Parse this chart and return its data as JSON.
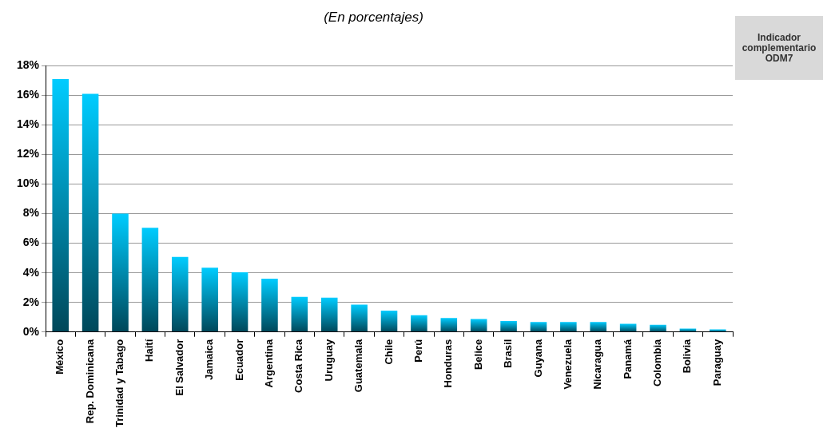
{
  "chart_data": {
    "type": "bar",
    "subtitle": "(En porcentajes)",
    "annotations": [
      "Indicador complementario ODM7"
    ],
    "categories": [
      "México",
      "Rep. Dominicana",
      "Trinidad y Tabago",
      "Haití",
      "El Salvador",
      "Jamaica",
      "Ecuador",
      "Argentina",
      "Costa Rica",
      "Uruguay",
      "Guatemala",
      "Chile",
      "Perú",
      "Honduras",
      "Belice",
      "Brasil",
      "Guyana",
      "Venezuela",
      "Nicaragua",
      "Panamá",
      "Colombia",
      "Bolivia",
      "Paraguay"
    ],
    "values": [
      17.1,
      16.1,
      8.0,
      7.05,
      5.08,
      4.34,
      4.04,
      3.6,
      2.38,
      2.32,
      1.85,
      1.45,
      1.13,
      0.94,
      0.87,
      0.74,
      0.68,
      0.68,
      0.68,
      0.55,
      0.49,
      0.23,
      0.17
    ],
    "color": "#00ccff",
    "ylim": [
      0,
      18
    ],
    "yticks": [
      {
        "value": 0,
        "label": "0%"
      },
      {
        "value": 2,
        "label": "2%"
      },
      {
        "value": 4,
        "label": "4%"
      },
      {
        "value": 6,
        "label": "6%"
      },
      {
        "value": 8,
        "label": "8%"
      },
      {
        "value": 10,
        "label": "10%"
      },
      {
        "value": 12,
        "label": "12%"
      },
      {
        "value": 14,
        "label": "14%"
      },
      {
        "value": 16,
        "label": "16%"
      },
      {
        "value": 18,
        "label": "18%"
      }
    ],
    "grid": "y",
    "legend": false
  }
}
